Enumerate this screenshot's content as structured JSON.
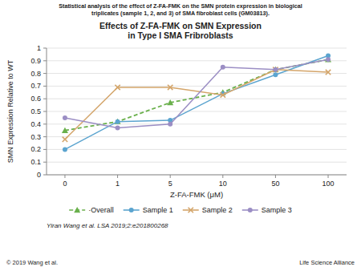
{
  "chart_data": {
    "type": "line",
    "title": "Effects of Z-FA-FMK on SMN Expression\nin Type I SMA Fribroblasts",
    "subtitle": "Statistical analysis of the effect of Z-FA-FMK on the SMN protein expression in biological\ntriplicates (sample 1, 2, and 3) of SMA fibroblast cells (GM03813).",
    "x_label": "Z-FA-FMK (μM)",
    "y_label": "SMN Expression Relative to WT",
    "categories": [
      "0",
      "1",
      "5",
      "10",
      "50",
      "100"
    ],
    "series": [
      {
        "name": "·Overall",
        "color": "#6ab04c",
        "marker": "triangle",
        "line_style": "dashed",
        "values": [
          0.35,
          0.42,
          0.57,
          0.65,
          0.83,
          0.91
        ]
      },
      {
        "name": "Sample 1",
        "color": "#5ba4cf",
        "marker": "circle",
        "line_style": "solid",
        "values": [
          0.2,
          0.42,
          0.43,
          0.64,
          0.79,
          0.94
        ]
      },
      {
        "name": "Sample 2",
        "color": "#d4a56a",
        "marker": "x",
        "line_style": "solid",
        "values": [
          0.28,
          0.69,
          0.69,
          0.63,
          0.83,
          0.81
        ]
      },
      {
        "name": "Sample 3",
        "color": "#9b8ec4",
        "marker": "circle",
        "line_style": "solid",
        "values": [
          0.45,
          0.37,
          0.4,
          0.85,
          0.83,
          0.91
        ]
      }
    ],
    "ylim": [
      0,
      1.0
    ],
    "yticks": [
      0,
      0.1,
      0.2,
      0.3,
      0.4,
      0.5,
      0.6,
      0.7,
      0.8,
      0.9,
      1
    ],
    "grid": true,
    "legend": "bottom",
    "annotations": [
      "Yiran Wang et al. LSA 2019;2:e201800268",
      "© 2019 Wang et al.",
      "Life Science Alliance"
    ]
  }
}
